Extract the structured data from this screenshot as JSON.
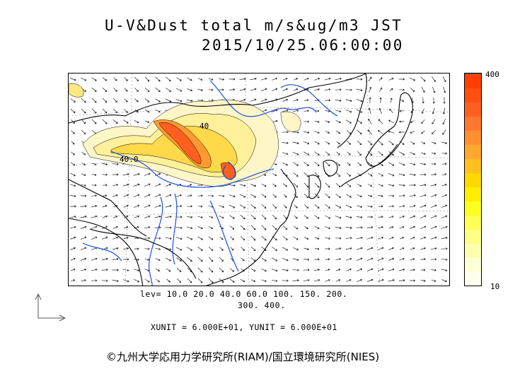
{
  "header": {
    "title_line1": "U-V&Dust total m/s&ug/m3 JST",
    "title_line2": "2015/10/25.06:00:00"
  },
  "colorbar": {
    "max_label": "400",
    "min_label": "10",
    "colors": [
      "#ffffee",
      "#ffffd5",
      "#ffffb0",
      "#ffff88",
      "#ffff55",
      "#ffff22",
      "#ffee00",
      "#ffd800",
      "#ffc020",
      "#ffa830",
      "#ff9030",
      "#ff7830",
      "#ff6020",
      "#ff5010",
      "#ff4000"
    ]
  },
  "levels": {
    "line1": "lev= 10.0 20.0 40.0 60.0 100. 150. 200.",
    "line2": "300. 400."
  },
  "units_text": "XUNIT = 6.000E+01, YUNIT = 6.000E+01",
  "contour_labels": [
    "40.0",
    "40"
  ],
  "copyright": "©九州大学応用力学研究所(RIAM)/国立環境研究所(NIES)",
  "colors": {
    "coast": "#000000",
    "river": "#1a4fe0",
    "arrow": "#222222"
  }
}
